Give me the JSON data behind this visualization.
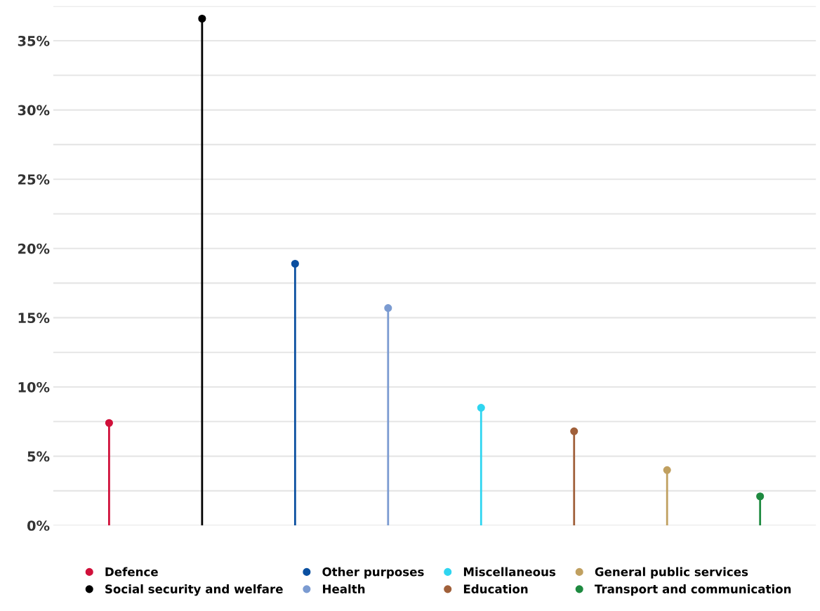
{
  "chart_data": {
    "type": "lollipop",
    "categories": [
      null,
      null,
      null,
      null,
      null,
      null,
      null,
      null
    ],
    "series": [
      {
        "name": "Defence",
        "color": "#d0103a",
        "values": [
          7.4,
          null,
          null,
          null,
          null,
          null,
          null,
          null
        ]
      },
      {
        "name": "Social security and welfare",
        "color": "#000000",
        "values": [
          null,
          36.6,
          null,
          null,
          null,
          null,
          null,
          null
        ]
      },
      {
        "name": "Other purposes",
        "color": "#0a4fa0",
        "values": [
          null,
          null,
          18.9,
          null,
          null,
          null,
          null,
          null
        ]
      },
      {
        "name": "Health",
        "color": "#7b9bd1",
        "values": [
          null,
          null,
          null,
          15.7,
          null,
          null,
          null,
          null
        ]
      },
      {
        "name": "Miscellaneous",
        "color": "#2fd5f0",
        "values": [
          null,
          null,
          null,
          null,
          8.5,
          null,
          null,
          null
        ]
      },
      {
        "name": "Education",
        "color": "#a0603a",
        "values": [
          null,
          null,
          null,
          null,
          null,
          6.8,
          null,
          null
        ]
      },
      {
        "name": "General public services",
        "color": "#c0a060",
        "values": [
          null,
          null,
          null,
          null,
          null,
          null,
          4.0,
          null
        ]
      },
      {
        "name": "Transport and communication",
        "color": "#1e8a40",
        "values": [
          null,
          null,
          null,
          null,
          null,
          null,
          null,
          2.1
        ]
      }
    ],
    "ylim": [
      0,
      37.5
    ],
    "yticks": [
      {
        "value": 0,
        "label": "0%"
      },
      {
        "value": 2.5,
        "label": null
      },
      {
        "value": 5,
        "label": "5%"
      },
      {
        "value": 7.5,
        "label": null
      },
      {
        "value": 10,
        "label": "10%"
      },
      {
        "value": 12.5,
        "label": null
      },
      {
        "value": 15,
        "label": "15%"
      },
      {
        "value": 17.5,
        "label": null
      },
      {
        "value": 20,
        "label": "20%"
      },
      {
        "value": 22.5,
        "label": null
      },
      {
        "value": 25,
        "label": "25%"
      },
      {
        "value": 27.5,
        "label": null
      },
      {
        "value": 30,
        "label": "30%"
      },
      {
        "value": 32.5,
        "label": null
      },
      {
        "value": 35,
        "label": "35%"
      },
      {
        "value": 37.5,
        "label": null
      }
    ],
    "grid": "y",
    "legend": "bottom",
    "marker": "circle",
    "tick_labels": "y"
  }
}
